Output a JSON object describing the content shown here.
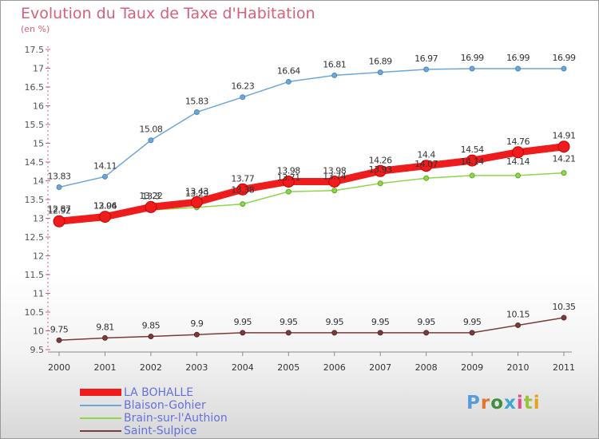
{
  "header": {
    "title": "Evolution du Taux de Taxe d'Habitation",
    "subtitle": "(en %)"
  },
  "logo": {
    "text": "Proxiti",
    "colors": [
      "#5b9bd5",
      "#e0762c",
      "#3f8f3f",
      "#3fa6d0",
      "#e04e8c",
      "#9bc23c",
      "#e6a21d"
    ]
  },
  "chart_data": {
    "type": "line",
    "x": [
      "2000",
      "2001",
      "2002",
      "2003",
      "2004",
      "2005",
      "2006",
      "2007",
      "2008",
      "2009",
      "2010",
      "2011"
    ],
    "ylim": [
      9.5,
      17.5
    ],
    "yticks": [
      "9.5",
      "10",
      "10.5",
      "11",
      "11.5",
      "12",
      "12.5",
      "13",
      "13.5",
      "14",
      "14.5",
      "15",
      "15.5",
      "16",
      "16.5",
      "17",
      "17.5"
    ],
    "grid": false,
    "legend_position": "bottom-left",
    "series": [
      {
        "name": "LA BOHALLE",
        "color": "#ee1c1c",
        "values": [
          12.92,
          13.04,
          13.3,
          13.43,
          13.77,
          13.98,
          13.98,
          14.26,
          14.4,
          14.54,
          14.76,
          14.91
        ],
        "labels": [
          "12.92",
          "13.04",
          "13.3",
          "13.43",
          "13.77",
          "13.98",
          "13.98",
          "14.26",
          "14.4",
          "14.54",
          "14.76",
          "14.91"
        ]
      },
      {
        "name": "Blaison-Gohier",
        "color": "#6ea6d6",
        "values": [
          13.83,
          14.11,
          15.08,
          15.83,
          16.23,
          16.64,
          16.81,
          16.89,
          16.97,
          16.99,
          16.99,
          16.99
        ],
        "labels": [
          "13.83",
          "14.11",
          "15.08",
          "15.83",
          "16.23",
          "16.64",
          "16.81",
          "16.89",
          "16.97",
          "16.99",
          "16.99",
          "16.99"
        ]
      },
      {
        "name": "Brain-sur-l'Authion",
        "color": "#8fd64a",
        "values": [
          12.87,
          12.96,
          13.22,
          13.29,
          13.38,
          13.71,
          13.74,
          13.93,
          14.07,
          14.14,
          14.14,
          14.21
        ],
        "labels": [
          "12.87",
          "12.96",
          "13.22",
          "13.29",
          "13.38",
          "13.71",
          "13.74",
          "13.93",
          "14.07",
          "14.14",
          "14.14",
          "14.21"
        ]
      },
      {
        "name": "Saint-Sulpice",
        "color": "#7a3b3b",
        "values": [
          9.75,
          9.81,
          9.85,
          9.9,
          9.95,
          9.95,
          9.95,
          9.95,
          9.95,
          9.95,
          10.15,
          10.35
        ],
        "labels": [
          "9.75",
          "9.81",
          "9.85",
          "9.9",
          "9.95",
          "9.95",
          "9.95",
          "9.95",
          "9.95",
          "9.95",
          "10.15",
          "10.35"
        ]
      }
    ]
  }
}
